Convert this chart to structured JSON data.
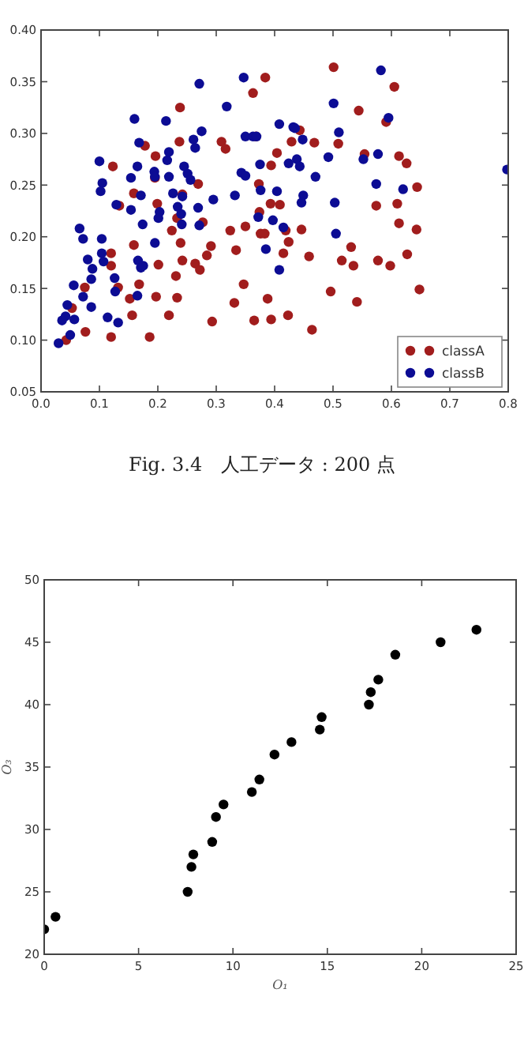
{
  "chart_data": [
    {
      "type": "scatter",
      "marker": "circle",
      "legend": "bottom right",
      "xlim": [
        0,
        0.8
      ],
      "ylim": [
        0.05,
        0.4
      ],
      "xticks": [
        {
          "value": 0,
          "label": "0.0"
        },
        {
          "value": 0.1,
          "label": "0.1"
        },
        {
          "value": 0.2,
          "label": "0.2"
        },
        {
          "value": 0.3,
          "label": "0.3"
        },
        {
          "value": 0.4,
          "label": "0.4"
        },
        {
          "value": 0.5,
          "label": "0.5"
        },
        {
          "value": 0.6,
          "label": "0.6"
        },
        {
          "value": 0.7,
          "label": "0.7"
        },
        {
          "value": 0.8,
          "label": "0.8"
        }
      ],
      "yticks": [
        {
          "value": 0.05,
          "label": "0.05"
        },
        {
          "value": 0.1,
          "label": "0.10"
        },
        {
          "value": 0.15,
          "label": "0.15"
        },
        {
          "value": 0.2,
          "label": "0.20"
        },
        {
          "value": 0.25,
          "label": "0.25"
        },
        {
          "value": 0.3,
          "label": "0.30"
        },
        {
          "value": 0.35,
          "label": "0.35"
        },
        {
          "value": 0.4,
          "label": "0.40"
        }
      ],
      "annotations": [
        "Fig. 3.4　人工データ : 200 点"
      ],
      "series": [
        {
          "name": "classA",
          "color": "#a11d1d",
          "x": [
            0.043,
            0.053,
            0.075,
            0.076,
            0.12,
            0.12,
            0.12,
            0.123,
            0.134,
            0.132,
            0.152,
            0.156,
            0.159,
            0.159,
            0.168,
            0.178,
            0.186,
            0.195,
            0.199,
            0.201,
            0.197,
            0.196,
            0.219,
            0.224,
            0.231,
            0.233,
            0.238,
            0.237,
            0.242,
            0.239,
            0.242,
            0.233,
            0.264,
            0.269,
            0.272,
            0.277,
            0.284,
            0.291,
            0.293,
            0.309,
            0.316,
            0.324,
            0.331,
            0.334,
            0.347,
            0.35,
            0.365,
            0.368,
            0.373,
            0.374,
            0.376,
            0.383,
            0.363,
            0.384,
            0.501,
            0.605,
            0.544,
            0.591,
            0.443,
            0.429,
            0.468,
            0.509,
            0.404,
            0.394,
            0.554,
            0.613,
            0.626,
            0.644,
            0.393,
            0.409,
            0.574,
            0.61,
            0.419,
            0.446,
            0.613,
            0.643,
            0.424,
            0.415,
            0.531,
            0.459,
            0.515,
            0.535,
            0.577,
            0.598,
            0.627,
            0.496,
            0.648,
            0.541,
            0.388,
            0.394,
            0.423,
            0.464
          ],
          "values": [
            0.1,
            0.131,
            0.151,
            0.108,
            0.103,
            0.184,
            0.172,
            0.268,
            0.23,
            0.151,
            0.14,
            0.124,
            0.242,
            0.192,
            0.154,
            0.288,
            0.103,
            0.257,
            0.232,
            0.173,
            0.142,
            0.278,
            0.124,
            0.206,
            0.162,
            0.218,
            0.325,
            0.292,
            0.241,
            0.194,
            0.177,
            0.141,
            0.174,
            0.251,
            0.168,
            0.214,
            0.182,
            0.191,
            0.118,
            0.292,
            0.285,
            0.206,
            0.136,
            0.187,
            0.154,
            0.21,
            0.119,
            0.297,
            0.251,
            0.224,
            0.203,
            0.203,
            0.339,
            0.354,
            0.364,
            0.345,
            0.322,
            0.311,
            0.303,
            0.292,
            0.291,
            0.29,
            0.281,
            0.269,
            0.28,
            0.278,
            0.271,
            0.248,
            0.232,
            0.231,
            0.23,
            0.232,
            0.206,
            0.207,
            0.213,
            0.207,
            0.195,
            0.184,
            0.19,
            0.181,
            0.177,
            0.172,
            0.177,
            0.172,
            0.183,
            0.147,
            0.149,
            0.137,
            0.14,
            0.12,
            0.124,
            0.11
          ]
        },
        {
          "name": "classB",
          "color": "#0c0c94",
          "x": [
            0.03,
            0.036,
            0.042,
            0.045,
            0.057,
            0.05,
            0.056,
            0.066,
            0.072,
            0.08,
            0.088,
            0.086,
            0.072,
            0.086,
            0.1,
            0.105,
            0.102,
            0.104,
            0.104,
            0.107,
            0.114,
            0.126,
            0.127,
            0.132,
            0.129,
            0.154,
            0.154,
            0.16,
            0.165,
            0.168,
            0.171,
            0.174,
            0.166,
            0.171,
            0.165,
            0.175,
            0.195,
            0.194,
            0.195,
            0.203,
            0.201,
            0.214,
            0.216,
            0.219,
            0.219,
            0.226,
            0.234,
            0.24,
            0.241,
            0.242,
            0.245,
            0.251,
            0.256,
            0.261,
            0.264,
            0.269,
            0.271,
            0.271,
            0.275,
            0.295,
            0.318,
            0.332,
            0.347,
            0.343,
            0.35,
            0.35,
            0.363,
            0.369,
            0.372,
            0.375,
            0.376,
            0.385,
            0.582,
            0.501,
            0.595,
            0.408,
            0.432,
            0.435,
            0.448,
            0.51,
            0.424,
            0.438,
            0.443,
            0.492,
            0.552,
            0.577,
            0.47,
            0.404,
            0.449,
            0.446,
            0.503,
            0.574,
            0.62,
            0.397,
            0.415,
            0.505,
            0.408,
            0.798
          ],
          "values": [
            0.097,
            0.119,
            0.123,
            0.134,
            0.12,
            0.105,
            0.153,
            0.208,
            0.198,
            0.178,
            0.169,
            0.159,
            0.142,
            0.132,
            0.273,
            0.252,
            0.244,
            0.198,
            0.184,
            0.176,
            0.122,
            0.16,
            0.147,
            0.117,
            0.231,
            0.257,
            0.226,
            0.314,
            0.268,
            0.291,
            0.24,
            0.212,
            0.177,
            0.17,
            0.143,
            0.172,
            0.194,
            0.263,
            0.258,
            0.224,
            0.218,
            0.312,
            0.274,
            0.282,
            0.258,
            0.242,
            0.229,
            0.222,
            0.212,
            0.239,
            0.268,
            0.261,
            0.255,
            0.294,
            0.286,
            0.228,
            0.211,
            0.348,
            0.302,
            0.236,
            0.326,
            0.24,
            0.354,
            0.262,
            0.259,
            0.297,
            0.297,
            0.297,
            0.219,
            0.27,
            0.245,
            0.188,
            0.361,
            0.329,
            0.315,
            0.309,
            0.306,
            0.305,
            0.294,
            0.301,
            0.271,
            0.275,
            0.268,
            0.277,
            0.275,
            0.28,
            0.258,
            0.244,
            0.24,
            0.233,
            0.233,
            0.251,
            0.246,
            0.216,
            0.209,
            0.203,
            0.168,
            0.265
          ]
        }
      ]
    },
    {
      "type": "scatter",
      "marker": "circle",
      "xlabel": "O₁",
      "ylabel": "O₃",
      "xlim": [
        0,
        25
      ],
      "ylim": [
        20,
        50
      ],
      "xticks": [
        0,
        5,
        10,
        15,
        20,
        25
      ],
      "yticks": [
        20,
        25,
        30,
        35,
        40,
        45,
        50
      ],
      "series": [
        {
          "color": "#000000",
          "x": [
            0,
            0.6,
            7.6,
            7.8,
            7.9,
            8.9,
            9.1,
            9.5,
            11,
            11.4,
            12.2,
            13.1,
            14.6,
            14.7,
            17.2,
            17.3,
            17.7,
            18.6,
            21,
            22.9
          ],
          "values": [
            22,
            23,
            25,
            27,
            28,
            29,
            31,
            32,
            33,
            34,
            36,
            37,
            38,
            39,
            40,
            41,
            42,
            44,
            45,
            46
          ]
        }
      ]
    }
  ]
}
